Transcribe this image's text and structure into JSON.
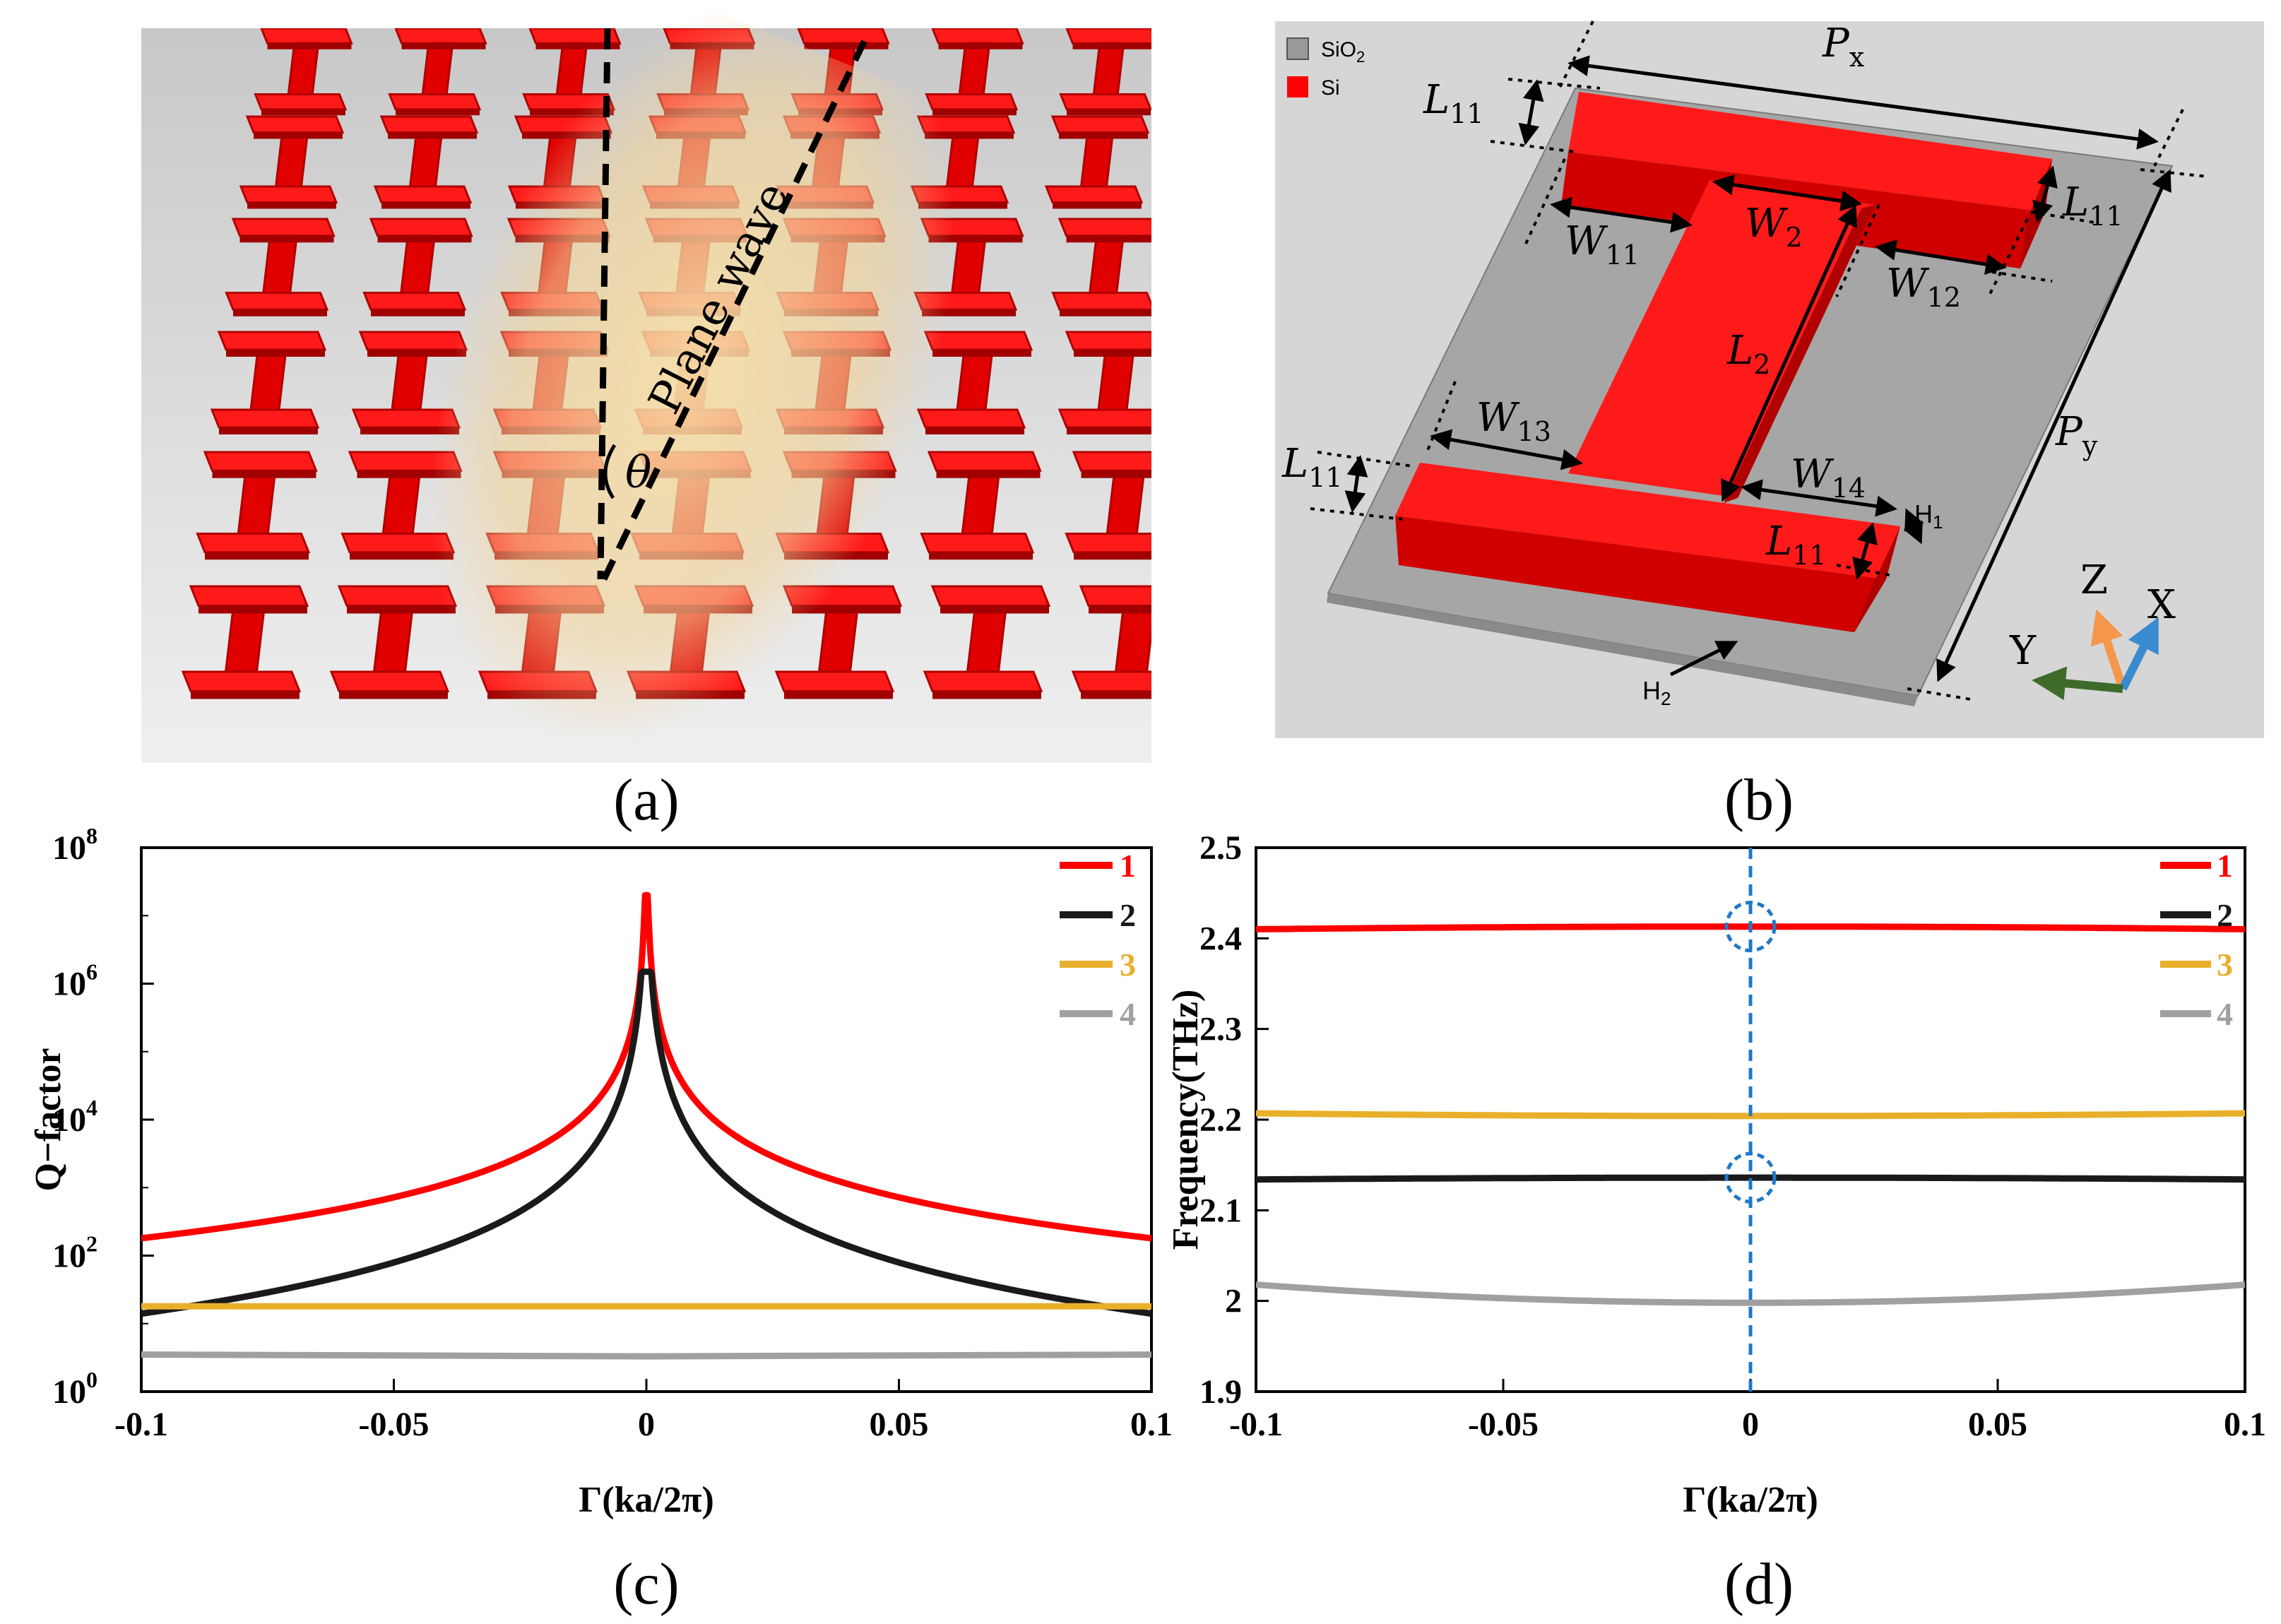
{
  "captions": {
    "a": "(a)",
    "b": "(b)",
    "c": "(c)",
    "d": "(d)"
  },
  "panel_a": {
    "wave_label": "Plane wave",
    "angle_label": "θ"
  },
  "panel_b": {
    "legend": [
      {
        "label": "SiO",
        "sub": "2",
        "color": "#999999"
      },
      {
        "label": "Si",
        "sub": "",
        "color": "#ff0000"
      }
    ],
    "dims": {
      "px": {
        "main": "P",
        "sub": "x"
      },
      "py": {
        "main": "P",
        "sub": "y"
      },
      "l11": {
        "main": "L",
        "sub": "11"
      },
      "l2": {
        "main": "L",
        "sub": "2"
      },
      "w2": {
        "main": "W",
        "sub": "2"
      },
      "w11": {
        "main": "W",
        "sub": "11"
      },
      "w12": {
        "main": "W",
        "sub": "12"
      },
      "w13": {
        "main": "W",
        "sub": "13"
      },
      "w14": {
        "main": "W",
        "sub": "14"
      },
      "h1": {
        "main": "H",
        "sub": "1"
      },
      "h2": {
        "main": "H",
        "sub": "2"
      }
    },
    "axes": {
      "x": "X",
      "y": "Y",
      "z": "Z",
      "x_color": "#3a8ad0",
      "y_color": "#3f6b2a",
      "z_color": "#f4974a"
    }
  },
  "chart_data": [
    {
      "type": "line",
      "id": "c",
      "xlabel": "Γ(ka/2π)",
      "ylabel": "Q−factor",
      "xlim": [
        -0.1,
        0.1
      ],
      "ylim": [
        1,
        100000000
      ],
      "yscale": "log",
      "xticks": [
        "-0.1",
        "-0.05",
        "0",
        "0.05",
        "0.1"
      ],
      "yticks": [
        {
          "base": "10",
          "exp": "0"
        },
        {
          "base": "10",
          "exp": "2"
        },
        {
          "base": "10",
          "exp": "4"
        },
        {
          "base": "10",
          "exp": "6"
        },
        {
          "base": "10",
          "exp": "8"
        }
      ],
      "legend_position": "top-right",
      "series": [
        {
          "name": "1",
          "color": "#ff0000",
          "x": [
            -0.1,
            -0.08,
            -0.06,
            -0.04,
            -0.02,
            -0.01,
            -0.005,
            -0.002,
            0,
            0.002,
            0.005,
            0.01,
            0.02,
            0.04,
            0.06,
            0.08,
            0.1
          ],
          "values": [
            180,
            300,
            500,
            1000,
            3000,
            10000,
            50000,
            300000,
            20000000,
            300000,
            50000,
            10000,
            3000,
            1000,
            500,
            300,
            180
          ]
        },
        {
          "name": "2",
          "color": "#1a1a1a",
          "x": [
            -0.1,
            -0.08,
            -0.06,
            -0.04,
            -0.02,
            -0.01,
            -0.005,
            -0.002,
            0,
            0.002,
            0.005,
            0.01,
            0.02,
            0.04,
            0.06,
            0.08,
            0.1
          ],
          "values": [
            14,
            25,
            50,
            100,
            300,
            900,
            4000,
            30000,
            1500000,
            30000,
            4000,
            900,
            300,
            100,
            50,
            25,
            14
          ]
        },
        {
          "name": "3",
          "color": "#e8b02a",
          "x": [
            -0.1,
            0,
            0.1
          ],
          "values": [
            18,
            18,
            18
          ]
        },
        {
          "name": "4",
          "color": "#a0a0a0",
          "x": [
            -0.1,
            0,
            0.1
          ],
          "values": [
            3.5,
            3.3,
            3.5
          ]
        }
      ]
    },
    {
      "type": "line",
      "id": "d",
      "xlabel": "Γ(ka/2π)",
      "ylabel": "Frequency(THz)",
      "xlim": [
        -0.1,
        0.1
      ],
      "ylim": [
        1.9,
        2.5
      ],
      "xticks": [
        "-0.1",
        "-0.05",
        "0",
        "0.05",
        "0.1"
      ],
      "yticks": [
        "1.9",
        "2",
        "2.1",
        "2.2",
        "2.3",
        "2.4",
        "2.5"
      ],
      "legend_position": "top-right",
      "series": [
        {
          "name": "1",
          "color": "#ff0000",
          "x": [
            -0.1,
            -0.05,
            0,
            0.05,
            0.1
          ],
          "values": [
            2.41,
            2.412,
            2.413,
            2.412,
            2.41
          ]
        },
        {
          "name": "2",
          "color": "#1a1a1a",
          "x": [
            -0.1,
            -0.05,
            0,
            0.05,
            0.1
          ],
          "values": [
            2.134,
            2.135,
            2.136,
            2.135,
            2.134
          ]
        },
        {
          "name": "3",
          "color": "#e8b02a",
          "x": [
            -0.1,
            -0.05,
            0,
            0.05,
            0.1
          ],
          "values": [
            2.207,
            2.205,
            2.204,
            2.205,
            2.207
          ]
        },
        {
          "name": "4",
          "color": "#a0a0a0",
          "x": [
            -0.1,
            -0.05,
            0,
            0.05,
            0.1
          ],
          "values": [
            2.018,
            2.002,
            1.998,
            2.002,
            2.018
          ]
        }
      ],
      "annotations": {
        "vline_x": 0,
        "circles_at": [
          2.413,
          2.136
        ],
        "color": "#1f78c8"
      }
    }
  ]
}
